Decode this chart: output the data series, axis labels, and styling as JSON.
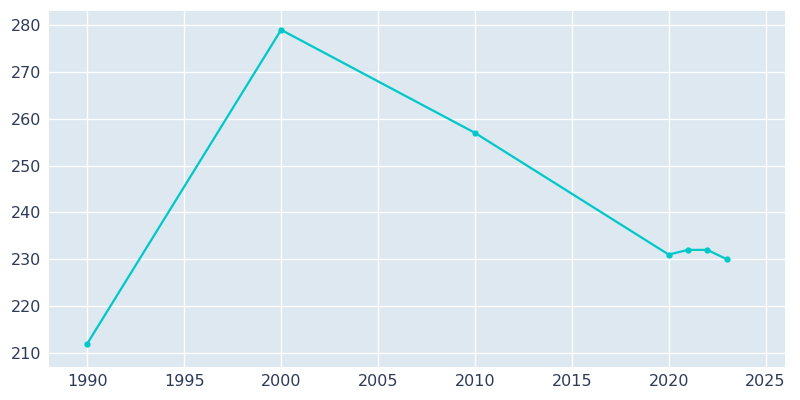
{
  "years": [
    1990,
    2000,
    2010,
    2020,
    2021,
    2022,
    2023
  ],
  "population": [
    212,
    279,
    257,
    231,
    232,
    232,
    230
  ],
  "line_color": "#00c8c8",
  "marker_style": "o",
  "marker_size": 3.5,
  "line_width": 1.6,
  "figure_bg_color": "#ffffff",
  "plot_bg_color": "#dde8f0",
  "grid_color": "#ffffff",
  "tick_color": "#2d3a5a",
  "xlim": [
    1988,
    2026
  ],
  "ylim": [
    207,
    283
  ],
  "xticks": [
    1990,
    1995,
    2000,
    2005,
    2010,
    2015,
    2020,
    2025
  ],
  "yticks": [
    210,
    220,
    230,
    240,
    250,
    260,
    270,
    280
  ],
  "tick_fontsize": 11.5
}
